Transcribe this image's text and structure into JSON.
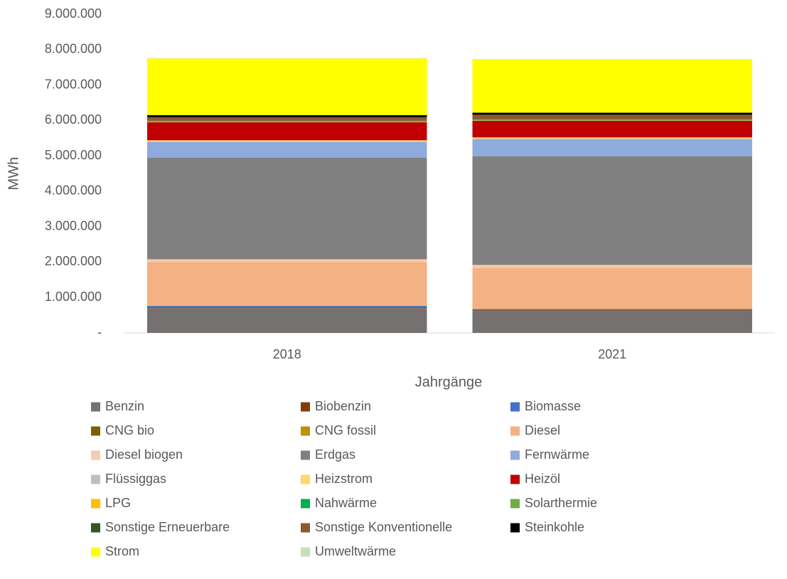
{
  "chart_data": {
    "type": "bar",
    "stacked": true,
    "y_label": "MWh",
    "x_label": "Jahrgänge",
    "categories": [
      "2018",
      "2021"
    ],
    "ylim": [
      0,
      9000000
    ],
    "yticks": [
      {
        "value": 0,
        "label": "-"
      },
      {
        "value": 1000000,
        "label": "1.000.000"
      },
      {
        "value": 2000000,
        "label": "2.000.000"
      },
      {
        "value": 3000000,
        "label": "3.000.000"
      },
      {
        "value": 4000000,
        "label": "4.000.000"
      },
      {
        "value": 5000000,
        "label": "5.000.000"
      },
      {
        "value": 6000000,
        "label": "6.000.000"
      },
      {
        "value": 7000000,
        "label": "7.000.000"
      },
      {
        "value": 8000000,
        "label": "8.000.000"
      },
      {
        "value": 9000000,
        "label": "9.000.000"
      }
    ],
    "grid": false,
    "legend": "bottom",
    "series": [
      {
        "name": "Benzin",
        "color": "#767171",
        "values": [
          700000,
          620000
        ]
      },
      {
        "name": "Biobenzin",
        "color": "#843c0c",
        "values": [
          20000,
          20000
        ]
      },
      {
        "name": "Biomasse",
        "color": "#4472c4",
        "values": [
          40000,
          30000
        ]
      },
      {
        "name": "CNG bio",
        "color": "#7f6000",
        "values": [
          5000,
          5000
        ]
      },
      {
        "name": "CNG fossil",
        "color": "#bf9000",
        "values": [
          5000,
          5000
        ]
      },
      {
        "name": "Diesel",
        "color": "#f4b183",
        "values": [
          1230000,
          1160000
        ]
      },
      {
        "name": "Diesel biogen",
        "color": "#f8cbad",
        "values": [
          80000,
          80000
        ]
      },
      {
        "name": "Erdgas",
        "color": "#808080",
        "values": [
          2870000,
          3070000
        ]
      },
      {
        "name": "Fernwärme",
        "color": "#8faadc",
        "values": [
          440000,
          480000
        ]
      },
      {
        "name": "Flüssiggas",
        "color": "#bfbfbf",
        "values": [
          20000,
          20000
        ]
      },
      {
        "name": "Heizstrom",
        "color": "#ffd966",
        "values": [
          30000,
          30000
        ]
      },
      {
        "name": "Heizöl",
        "color": "#c00000",
        "values": [
          510000,
          470000
        ]
      },
      {
        "name": "LPG",
        "color": "#ffc000",
        "values": [
          10000,
          10000
        ]
      },
      {
        "name": "Nahwärme",
        "color": "#00b050",
        "values": [
          10000,
          10000
        ]
      },
      {
        "name": "Solarthermie",
        "color": "#70ad47",
        "values": [
          10000,
          10000
        ]
      },
      {
        "name": "Sonstige Erneuerbare",
        "color": "#375623",
        "values": [
          10000,
          10000
        ]
      },
      {
        "name": "Sonstige Konventionelle",
        "color": "#8b5a2b",
        "values": [
          100000,
          130000
        ]
      },
      {
        "name": "Steinkohle",
        "color": "#000000",
        "values": [
          60000,
          60000
        ]
      },
      {
        "name": "Strom",
        "color": "#ffff00",
        "values": [
          1600000,
          1500000
        ]
      },
      {
        "name": "Umweltwärme",
        "color": "#c5e0b4",
        "values": [
          10000,
          10000
        ]
      }
    ]
  }
}
